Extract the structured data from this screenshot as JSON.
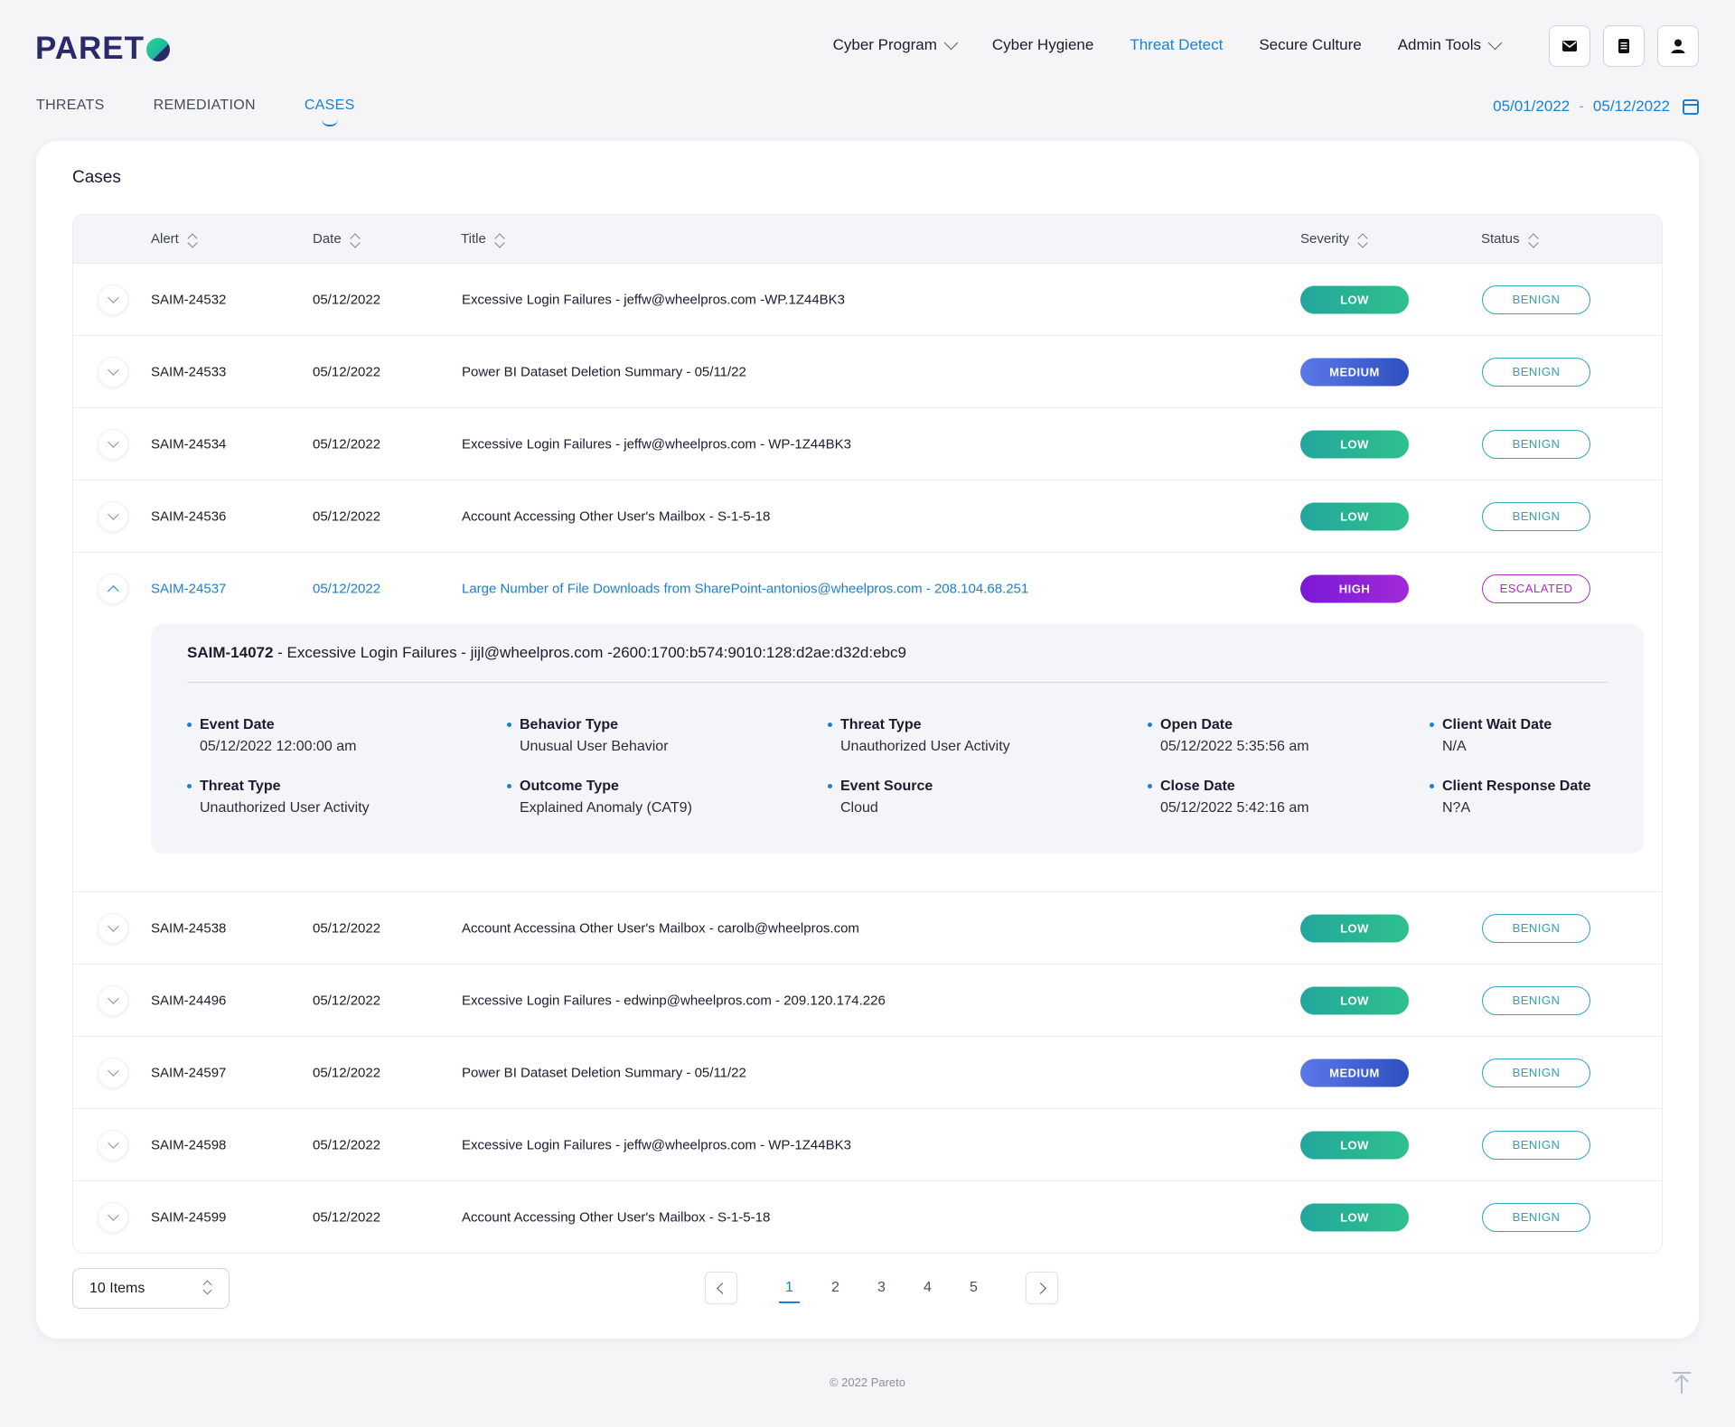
{
  "brand": {
    "logo_text": "PARET",
    "accent": "#1a80d6"
  },
  "topnav": [
    {
      "label": "Cyber Program",
      "has_dropdown": true,
      "active": false
    },
    {
      "label": "Cyber Hygiene",
      "has_dropdown": false,
      "active": false
    },
    {
      "label": "Threat Detect",
      "has_dropdown": false,
      "active": true
    },
    {
      "label": "Secure Culture",
      "has_dropdown": false,
      "active": false
    },
    {
      "label": "Admin Tools",
      "has_dropdown": true,
      "active": false
    }
  ],
  "header_icons": [
    "mail-icon",
    "document-icon",
    "user-icon"
  ],
  "subtabs": [
    {
      "label": "THREATS",
      "active": false
    },
    {
      "label": "REMEDIATION",
      "active": false
    },
    {
      "label": "CASES",
      "active": true
    }
  ],
  "date_range": {
    "start": "05/01/2022",
    "separator": "-",
    "end": "05/12/2022"
  },
  "card": {
    "title": "Cases"
  },
  "table": {
    "columns": [
      "Alert",
      "Date",
      "Title",
      "Severity",
      "Status"
    ],
    "rows_before": [
      {
        "alert": "SAIM-24532",
        "date": "05/12/2022",
        "title": "Excessive Login Failures - jeffw@wheelpros.com -WP.1Z44BK3",
        "severity": "LOW",
        "status": "BENIGN"
      },
      {
        "alert": "SAIM-24533",
        "date": "05/12/2022",
        "title": "Power BI Dataset Deletion Summary - 05/11/22",
        "severity": "MEDIUM",
        "status": "BENIGN"
      },
      {
        "alert": "SAIM-24534",
        "date": "05/12/2022",
        "title": "Excessive Login Failures - jeffw@wheelpros.com - WP-1Z44BK3",
        "severity": "LOW",
        "status": "BENIGN"
      },
      {
        "alert": "SAIM-24536",
        "date": "05/12/2022",
        "title": "Account Accessing Other User's Mailbox - S-1-5-18",
        "severity": "LOW",
        "status": "BENIGN"
      }
    ],
    "expanded_row": {
      "alert": "SAIM-24537",
      "date": "05/12/2022",
      "title": "Large Number of File Downloads from SharePoint-antonios@wheelpros.com - 208.104.68.251",
      "severity": "HIGH",
      "status": "ESCALATED"
    },
    "rows_after": [
      {
        "alert": "SAIM-24538",
        "date": "05/12/2022",
        "title": "Account Accessina Other User's Mailbox - carolb@wheelpros.com",
        "severity": "LOW",
        "status": "BENIGN"
      },
      {
        "alert": "SAIM-24496",
        "date": "05/12/2022",
        "title": "Excessive Login Failures - edwinp@wheelpros.com - 209.120.174.226",
        "severity": "LOW",
        "status": "BENIGN"
      },
      {
        "alert": "SAIM-24597",
        "date": "05/12/2022",
        "title": "Power BI Dataset Deletion Summary - 05/11/22",
        "severity": "MEDIUM",
        "status": "BENIGN"
      },
      {
        "alert": "SAIM-24598",
        "date": "05/12/2022",
        "title": "Excessive Login Failures - jeffw@wheelpros.com - WP-1Z44BK3",
        "severity": "LOW",
        "status": "BENIGN"
      },
      {
        "alert": "SAIM-24599",
        "date": "05/12/2022",
        "title": "Account Accessing Other User's Mailbox - S-1-5-18",
        "severity": "LOW",
        "status": "BENIGN"
      }
    ]
  },
  "detail": {
    "case_id": "SAIM-14072",
    "case_title": " - Excessive Login Failures - jijl@wheelpros.com -2600:1700:b574:9010:128:d2ae:d32d:ebc9",
    "fields": [
      {
        "label": "Event Date",
        "value": "05/12/2022  12:00:00 am"
      },
      {
        "label": "Behavior Type",
        "value": "Unusual User Behavior"
      },
      {
        "label": "Threat Type",
        "value": "Unauthorized User Activity"
      },
      {
        "label": "Open Date",
        "value": "05/12/2022  5:35:56 am"
      },
      {
        "label": "Client Wait Date",
        "value": "N/A"
      },
      {
        "label": "Threat Type",
        "value": "Unauthorized User Activity"
      },
      {
        "label": "Outcome Type",
        "value": "Explained Anomaly (CAT9)"
      },
      {
        "label": "Event Source",
        "value": "Cloud"
      },
      {
        "label": "Close Date",
        "value": "05/12/2022  5:42:16 am"
      },
      {
        "label": "Client Response Date",
        "value": "N?A"
      }
    ]
  },
  "pagination": {
    "page_size": "10 Items",
    "pages": [
      "1",
      "2",
      "3",
      "4",
      "5"
    ],
    "current": "1"
  },
  "footer": {
    "copyright": "© 2022 Pareto"
  }
}
